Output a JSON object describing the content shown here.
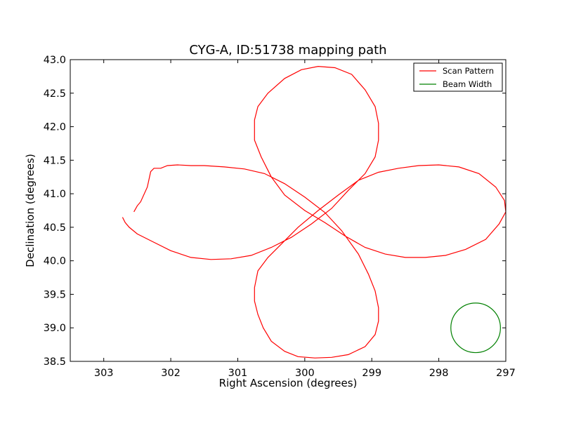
{
  "chart_data": {
    "type": "line",
    "title": "CYG-A, ID:51738 mapping path",
    "xlabel": "Right Ascension (degrees)",
    "ylabel": "Declination (degrees)",
    "xlim": [
      303.5,
      297.0
    ],
    "ylim": [
      38.5,
      43.0
    ],
    "x_inverted": true,
    "xticks": [
      303,
      302,
      301,
      300,
      299,
      298,
      297
    ],
    "yticks": [
      38.5,
      39.0,
      39.5,
      40.0,
      40.5,
      41.0,
      41.5,
      42.0,
      42.5,
      43.0
    ],
    "x_tick_labels": [
      "303",
      "302",
      "301",
      "300",
      "299",
      "298",
      "297"
    ],
    "y_tick_labels": [
      "38.5",
      "39.0",
      "39.5",
      "40.0",
      "40.5",
      "41.0",
      "41.5",
      "42.0",
      "42.5",
      "43.0"
    ],
    "legend_position": "top-right",
    "legend": [
      {
        "label": "Scan Pattern",
        "color": "#ff0000"
      },
      {
        "label": "Beam Width",
        "color": "#008000"
      }
    ],
    "series": [
      {
        "name": "Scan Pattern",
        "color": "#ff0000",
        "x": [
          302.55,
          302.5,
          302.45,
          302.35,
          302.3,
          302.25,
          302.15,
          302.05,
          301.9,
          301.7,
          301.5,
          301.2,
          300.9,
          300.6,
          300.3,
          300.0,
          299.7,
          299.45,
          299.2,
          299.05,
          298.95,
          298.9,
          298.9,
          298.95,
          299.1,
          299.35,
          299.6,
          299.85,
          300.1,
          300.3,
          300.5,
          300.62,
          300.7,
          300.75,
          300.75,
          300.7,
          300.55,
          300.35,
          300.1,
          299.8,
          299.5,
          299.2,
          298.9,
          298.6,
          298.3,
          298.0,
          297.7,
          297.4,
          297.15,
          297.02,
          297.0,
          297.1,
          297.3,
          297.6,
          297.9,
          298.2,
          298.5,
          298.8,
          299.1,
          299.4,
          299.7,
          300.0,
          300.3,
          300.5,
          300.65,
          300.75,
          300.75,
          300.7,
          300.55,
          300.3,
          300.05,
          299.8,
          299.55,
          299.3,
          299.1,
          298.95,
          298.9,
          298.9,
          298.95,
          299.1,
          299.35,
          299.6,
          299.9,
          300.2,
          300.5,
          300.8,
          301.1,
          301.4,
          301.7,
          302.0,
          302.3,
          302.5,
          302.62,
          302.68,
          302.72
        ],
        "y": [
          40.73,
          40.82,
          40.88,
          41.1,
          41.33,
          41.38,
          41.38,
          41.42,
          41.43,
          41.42,
          41.42,
          41.4,
          41.37,
          41.3,
          41.15,
          40.95,
          40.72,
          40.45,
          40.1,
          39.8,
          39.55,
          39.3,
          39.1,
          38.9,
          38.72,
          38.6,
          38.56,
          38.55,
          38.57,
          38.65,
          38.8,
          39.0,
          39.2,
          39.4,
          39.6,
          39.85,
          40.05,
          40.25,
          40.5,
          40.75,
          40.98,
          41.2,
          41.32,
          41.38,
          41.42,
          41.43,
          41.4,
          41.3,
          41.1,
          40.9,
          40.73,
          40.55,
          40.32,
          40.17,
          40.08,
          40.05,
          40.05,
          40.1,
          40.2,
          40.37,
          40.57,
          40.75,
          40.98,
          41.25,
          41.55,
          41.8,
          42.1,
          42.3,
          42.5,
          42.72,
          42.85,
          42.9,
          42.88,
          42.78,
          42.55,
          42.3,
          42.05,
          41.8,
          41.55,
          41.3,
          41.05,
          40.78,
          40.55,
          40.35,
          40.2,
          40.08,
          40.03,
          40.02,
          40.05,
          40.15,
          40.3,
          40.4,
          40.5,
          40.57,
          40.65
        ]
      },
      {
        "name": "Beam Width",
        "color": "#008000",
        "shape": "circle",
        "center_x": 297.45,
        "center_y": 39.0,
        "radius_deg": 0.37
      }
    ]
  }
}
